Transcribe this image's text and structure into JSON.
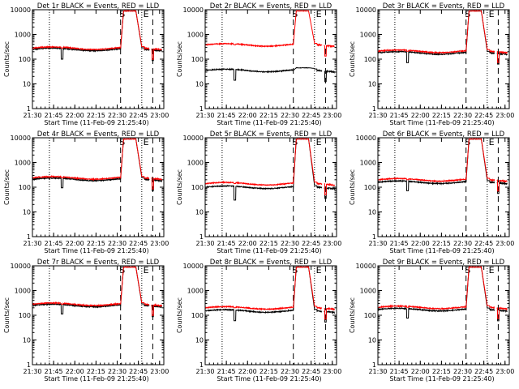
{
  "chart_data": [
    {
      "type": "line",
      "title": "Det 1r BLACK = Events, RED = LLD",
      "xlabel": "Start Time (11-Feb-09 21:25:40)",
      "ylabel": "Counts/sec",
      "ylim": [
        1,
        10000
      ],
      "yscale": "log",
      "xlim": [
        21.5,
        23.05
      ],
      "x_ticks": [
        21.5,
        21.75,
        22.0,
        22.25,
        22.5,
        22.75,
        23.0
      ],
      "x_tick_labels": [
        "21:30",
        "21:45",
        "22:00",
        "22:15",
        "22:30",
        "22:45",
        "23:00"
      ],
      "y_ticks": [
        1,
        10,
        100,
        1000,
        10000
      ],
      "y_tick_labels": [
        "1",
        "10",
        "100",
        "1000",
        "10000"
      ],
      "dotted_lines": [
        21.7,
        22.79
      ],
      "dashed_lines": [
        22.54,
        22.92
      ],
      "markers": [
        {
          "x": 22.56,
          "label": "S"
        },
        {
          "x": 22.84,
          "label": "E"
        }
      ],
      "series": [
        {
          "name": "LLD",
          "color": "#ff0000",
          "baseline": 280,
          "spike_level": 9000,
          "dip": 1.0
        },
        {
          "name": "Events",
          "color": "#000000",
          "baseline": 250,
          "spike_level": 9000,
          "dip": 0.4
        }
      ]
    },
    {
      "type": "line",
      "title": "Det 2r BLACK = Events, RED = LLD",
      "xlabel": "Start Time (11-Feb-09 21:25:40)",
      "ylabel": "Counts/sec",
      "ylim": [
        1,
        10000
      ],
      "yscale": "log",
      "xlim": [
        21.5,
        23.05
      ],
      "x_ticks": [
        21.5,
        21.75,
        22.0,
        22.25,
        22.5,
        22.75,
        23.0
      ],
      "x_tick_labels": [
        "21:30",
        "21:45",
        "22:00",
        "22:15",
        "22:30",
        "22:45",
        "23:00"
      ],
      "y_ticks": [
        1,
        10,
        100,
        1000,
        10000
      ],
      "y_tick_labels": [
        "1",
        "10",
        "100",
        "1000",
        "10000"
      ],
      "dotted_lines": [
        21.7,
        22.79
      ],
      "dashed_lines": [
        22.54,
        22.92
      ],
      "markers": [
        {
          "x": 22.56,
          "label": "S"
        },
        {
          "x": 22.84,
          "label": "E"
        }
      ],
      "series": [
        {
          "name": "LLD",
          "color": "#ff0000",
          "baseline": 380,
          "spike_level": 9000,
          "dip": 1.0
        },
        {
          "name": "Events",
          "color": "#000000",
          "baseline": 35,
          "spike_level": 45,
          "dip": 0.4
        }
      ]
    },
    {
      "type": "line",
      "title": "Det 3r BLACK = Events, RED = LLD",
      "xlabel": "Start Time (11-Feb-09 21:25:40)",
      "ylabel": "Counts/sec",
      "ylim": [
        1,
        10000
      ],
      "yscale": "log",
      "xlim": [
        21.5,
        23.05
      ],
      "x_ticks": [
        21.5,
        21.75,
        22.0,
        22.25,
        22.5,
        22.75,
        23.0
      ],
      "x_tick_labels": [
        "21:30",
        "21:45",
        "22:00",
        "22:15",
        "22:30",
        "22:45",
        "23:00"
      ],
      "y_ticks": [
        1,
        10,
        100,
        1000,
        10000
      ],
      "y_tick_labels": [
        "1",
        "10",
        "100",
        "1000",
        "10000"
      ],
      "dotted_lines": [
        21.7,
        22.79
      ],
      "dashed_lines": [
        22.54,
        22.92
      ],
      "markers": [
        {
          "x": 22.56,
          "label": "S"
        },
        {
          "x": 22.84,
          "label": "E"
        }
      ],
      "series": [
        {
          "name": "LLD",
          "color": "#ff0000",
          "baseline": 210,
          "spike_level": 9000,
          "dip": 1.0
        },
        {
          "name": "Events",
          "color": "#000000",
          "baseline": 180,
          "spike_level": 9000,
          "dip": 0.4
        }
      ]
    },
    {
      "type": "line",
      "title": "Det 4r BLACK = Events, RED = LLD",
      "xlabel": "Start Time (11-Feb-09 21:25:40)",
      "ylabel": "Counts/sec",
      "ylim": [
        1,
        10000
      ],
      "yscale": "log",
      "xlim": [
        21.5,
        23.05
      ],
      "x_ticks": [
        21.5,
        21.75,
        22.0,
        22.25,
        22.5,
        22.75,
        23.0
      ],
      "x_tick_labels": [
        "21:30",
        "21:45",
        "22:00",
        "22:15",
        "22:30",
        "22:45",
        "23:00"
      ],
      "y_ticks": [
        1,
        10,
        100,
        1000,
        10000
      ],
      "y_tick_labels": [
        "1",
        "10",
        "100",
        "1000",
        "10000"
      ],
      "dotted_lines": [
        21.7,
        22.79
      ],
      "dashed_lines": [
        22.54,
        22.92
      ],
      "markers": [
        {
          "x": 22.56,
          "label": "S"
        },
        {
          "x": 22.84,
          "label": "E"
        }
      ],
      "series": [
        {
          "name": "LLD",
          "color": "#ff0000",
          "baseline": 240,
          "spike_level": 9000,
          "dip": 1.0
        },
        {
          "name": "Events",
          "color": "#000000",
          "baseline": 210,
          "spike_level": 9000,
          "dip": 0.45
        }
      ]
    },
    {
      "type": "line",
      "title": "Det 5r BLACK = Events, RED = LLD",
      "xlabel": "Start Time (11-Feb-09 21:25:40)",
      "ylabel": "Counts/sec",
      "ylim": [
        1,
        10000
      ],
      "yscale": "log",
      "xlim": [
        21.5,
        23.05
      ],
      "x_ticks": [
        21.5,
        21.75,
        22.0,
        22.25,
        22.5,
        22.75,
        23.0
      ],
      "x_tick_labels": [
        "21:30",
        "21:45",
        "22:00",
        "22:15",
        "22:30",
        "22:45",
        "23:00"
      ],
      "y_ticks": [
        1,
        10,
        100,
        1000,
        10000
      ],
      "y_tick_labels": [
        "1",
        "10",
        "100",
        "1000",
        "10000"
      ],
      "dotted_lines": [
        21.7,
        22.79
      ],
      "dashed_lines": [
        22.54,
        22.92
      ],
      "markers": [
        {
          "x": 22.56,
          "label": "S"
        },
        {
          "x": 22.84,
          "label": "E"
        }
      ],
      "series": [
        {
          "name": "LLD",
          "color": "#ff0000",
          "baseline": 140,
          "spike_level": 9000,
          "dip": 1.0
        },
        {
          "name": "Events",
          "color": "#000000",
          "baseline": 100,
          "spike_level": 9000,
          "dip": 0.3
        }
      ]
    },
    {
      "type": "line",
      "title": "Det 6r BLACK = Events, RED = LLD",
      "xlabel": "Start Time (11-Feb-09 21:25:40)",
      "ylabel": "Counts/sec",
      "ylim": [
        1,
        10000
      ],
      "yscale": "log",
      "xlim": [
        21.5,
        23.05
      ],
      "x_ticks": [
        21.5,
        21.75,
        22.0,
        22.25,
        22.5,
        22.75,
        23.0
      ],
      "x_tick_labels": [
        "21:30",
        "21:45",
        "22:00",
        "22:15",
        "22:30",
        "22:45",
        "23:00"
      ],
      "y_ticks": [
        1,
        10,
        100,
        1000,
        10000
      ],
      "y_tick_labels": [
        "1",
        "10",
        "100",
        "1000",
        "10000"
      ],
      "dotted_lines": [
        21.7,
        22.79
      ],
      "dashed_lines": [
        22.54,
        22.92
      ],
      "markers": [
        {
          "x": 22.56,
          "label": "S"
        },
        {
          "x": 22.84,
          "label": "E"
        }
      ],
      "series": [
        {
          "name": "LLD",
          "color": "#ff0000",
          "baseline": 200,
          "spike_level": 9000,
          "dip": 1.0
        },
        {
          "name": "Events",
          "color": "#000000",
          "baseline": 160,
          "spike_level": 9000,
          "dip": 0.45
        }
      ]
    },
    {
      "type": "line",
      "title": "Det 7r BLACK = Events, RED = LLD",
      "xlabel": "Start Time (11-Feb-09 21:25:40)",
      "ylabel": "Counts/sec",
      "ylim": [
        1,
        10000
      ],
      "yscale": "log",
      "xlim": [
        21.5,
        23.05
      ],
      "x_ticks": [
        21.5,
        21.75,
        22.0,
        22.25,
        22.5,
        22.75,
        23.0
      ],
      "x_tick_labels": [
        "21:30",
        "21:45",
        "22:00",
        "22:15",
        "22:30",
        "22:45",
        "23:00"
      ],
      "y_ticks": [
        1,
        10,
        100,
        1000,
        10000
      ],
      "y_tick_labels": [
        "1",
        "10",
        "100",
        "1000",
        "10000"
      ],
      "dotted_lines": [
        21.7,
        22.79
      ],
      "dashed_lines": [
        22.54,
        22.92
      ],
      "markers": [
        {
          "x": 22.56,
          "label": "S"
        },
        {
          "x": 22.84,
          "label": "E"
        }
      ],
      "series": [
        {
          "name": "LLD",
          "color": "#ff0000",
          "baseline": 280,
          "spike_level": 9000,
          "dip": 1.0
        },
        {
          "name": "Events",
          "color": "#000000",
          "baseline": 250,
          "spike_level": 9000,
          "dip": 0.45
        }
      ]
    },
    {
      "type": "line",
      "title": "Det 8r BLACK = Events, RED = LLD",
      "xlabel": "Start Time (11-Feb-09 21:25:40)",
      "ylabel": "Counts/sec",
      "ylim": [
        1,
        10000
      ],
      "yscale": "log",
      "xlim": [
        21.5,
        23.05
      ],
      "x_ticks": [
        21.5,
        21.75,
        22.0,
        22.25,
        22.5,
        22.75,
        23.0
      ],
      "x_tick_labels": [
        "21:30",
        "21:45",
        "22:00",
        "22:15",
        "22:30",
        "22:45",
        "23:00"
      ],
      "y_ticks": [
        1,
        10,
        100,
        1000,
        10000
      ],
      "y_tick_labels": [
        "1",
        "10",
        "100",
        "1000",
        "10000"
      ],
      "dotted_lines": [
        21.7,
        22.79
      ],
      "dashed_lines": [
        22.54,
        22.92
      ],
      "markers": [
        {
          "x": 22.56,
          "label": "S"
        },
        {
          "x": 22.84,
          "label": "E"
        }
      ],
      "series": [
        {
          "name": "LLD",
          "color": "#ff0000",
          "baseline": 200,
          "spike_level": 9000,
          "dip": 1.0
        },
        {
          "name": "Events",
          "color": "#000000",
          "baseline": 150,
          "spike_level": 9000,
          "dip": 0.4
        }
      ]
    },
    {
      "type": "line",
      "title": "Det 9r BLACK = Events, RED = LLD",
      "xlabel": "Start Time (11-Feb-09 21:25:40)",
      "ylabel": "Counts/sec",
      "ylim": [
        1,
        10000
      ],
      "yscale": "log",
      "xlim": [
        21.5,
        23.05
      ],
      "x_ticks": [
        21.5,
        21.75,
        22.0,
        22.25,
        22.5,
        22.75,
        23.0
      ],
      "x_tick_labels": [
        "21:30",
        "21:45",
        "22:00",
        "22:15",
        "22:30",
        "22:45",
        "23:00"
      ],
      "y_ticks": [
        1,
        10,
        100,
        1000,
        10000
      ],
      "y_tick_labels": [
        "1",
        "10",
        "100",
        "1000",
        "10000"
      ],
      "dotted_lines": [
        21.7,
        22.79
      ],
      "dashed_lines": [
        22.54,
        22.92
      ],
      "markers": [
        {
          "x": 22.56,
          "label": "S"
        },
        {
          "x": 22.84,
          "label": "E"
        }
      ],
      "series": [
        {
          "name": "LLD",
          "color": "#ff0000",
          "baseline": 210,
          "spike_level": 9000,
          "dip": 1.0
        },
        {
          "name": "Events",
          "color": "#000000",
          "baseline": 170,
          "spike_level": 9000,
          "dip": 0.45
        }
      ]
    }
  ]
}
